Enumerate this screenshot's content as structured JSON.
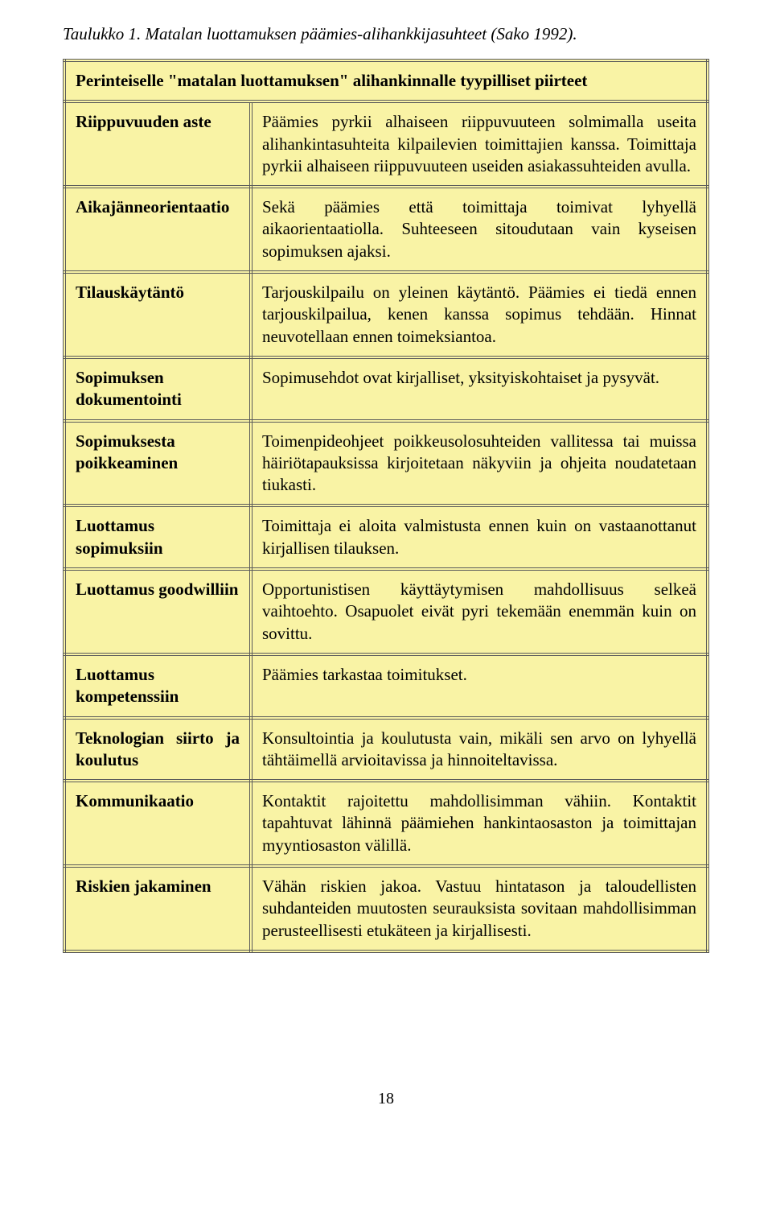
{
  "caption": "Taulukko 1. Matalan luottamuksen päämies-alihankkijasuhteet (Sako 1992).",
  "header": "Perinteiselle \"matalan luottamuksen\" alihankinnalle tyypilliset piirteet",
  "rows": [
    {
      "label": "Riippuvuuden aste",
      "desc": "Päämies pyrkii alhaiseen riippuvuuteen solmimalla useita alihankintasuhteita kilpailevien toimittajien kanssa. Toimittaja pyrkii alhaiseen riippuvuuteen useiden asiakassuhteiden avulla."
    },
    {
      "label": "Aikajänneorientaatio",
      "desc": "Sekä päämies että toimittaja toimivat lyhyellä aikaorientaatiolla. Suhteeseen sitoudutaan vain kyseisen sopimuksen ajaksi."
    },
    {
      "label": "Tilauskäytäntö",
      "desc": "Tarjouskilpailu on yleinen käytäntö. Päämies ei tiedä ennen tarjouskilpailua, kenen kanssa sopimus tehdään. Hinnat neuvotellaan ennen toimeksiantoa."
    },
    {
      "label": "Sopimuksen dokumentointi",
      "desc": "Sopimusehdot ovat kirjalliset, yksityiskohtaiset ja pysyvät."
    },
    {
      "label": "Sopimuksesta poikkeaminen",
      "desc": "Toimenpideohjeet poikkeusolosuhteiden vallitessa tai muissa häiriötapauksissa kirjoitetaan näkyviin ja ohjeita noudatetaan tiukasti."
    },
    {
      "label": "Luottamus sopimuksiin",
      "desc": "Toimittaja ei aloita valmistusta ennen kuin on vastaanottanut kirjallisen tilauksen."
    },
    {
      "label": "Luottamus goodwilliin",
      "desc": "Opportunistisen käyttäytymisen mahdollisuus selkeä vaihtoehto. Osapuolet eivät pyri tekemään enemmän kuin on sovittu."
    },
    {
      "label": "Luottamus kompetenssiin",
      "desc": "Päämies tarkastaa toimitukset."
    },
    {
      "label": "Teknologian siirto ja koulutus",
      "desc": "Konsultointia ja koulutusta vain, mikäli sen arvo on lyhyellä tähtäimellä arvioitavissa ja hinnoiteltavissa."
    },
    {
      "label": "Kommunikaatio",
      "desc": "Kontaktit rajoitettu mahdollisimman vähiin. Kontaktit tapahtuvat lähinnä päämiehen hankintaosaston ja toimittajan myyntiosaston välillä."
    },
    {
      "label": "Riskien jakaminen",
      "desc": "Vähän riskien jakoa. Vastuu hintatason ja taloudellisten suhdanteiden muutosten seurauksista sovitaan mahdollisimman perusteellisesti etukäteen ja kirjallisesti."
    }
  ],
  "page_number": "18",
  "colors": {
    "table_bg": "#f9f3a5",
    "border": "#5a5a5a",
    "page_bg": "#ffffff",
    "text": "#000000"
  }
}
